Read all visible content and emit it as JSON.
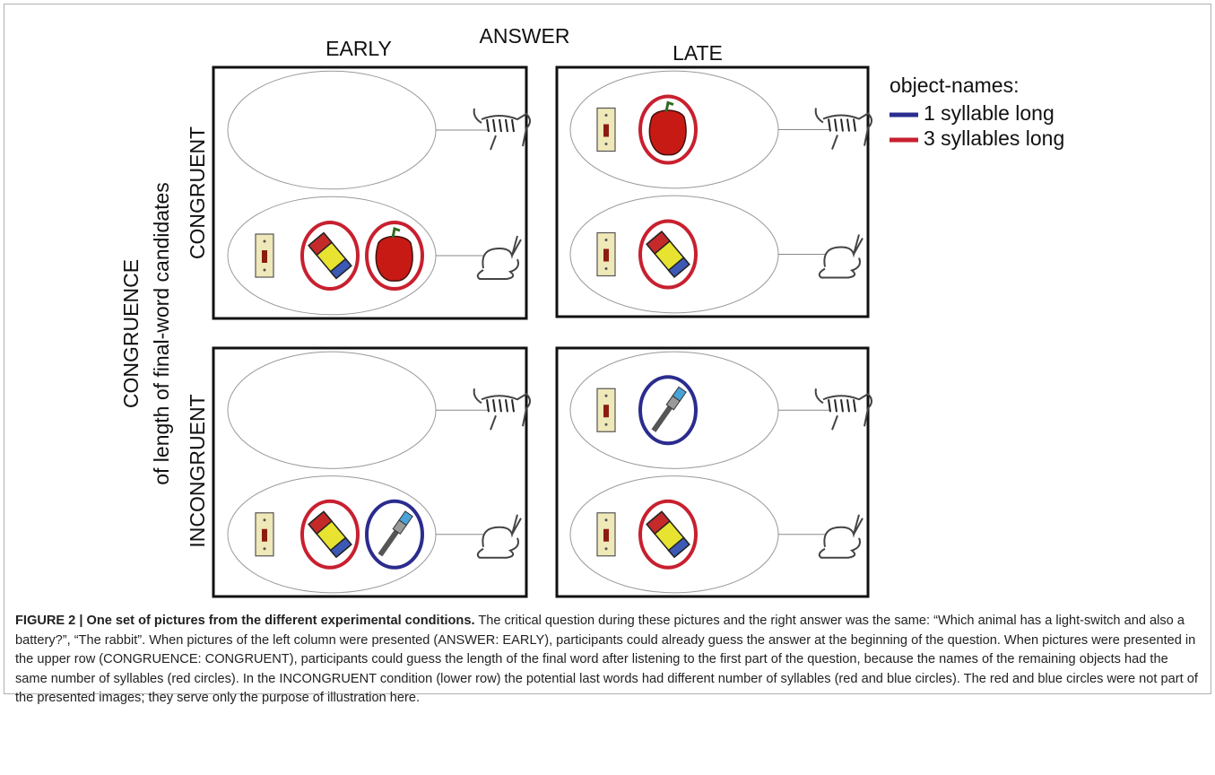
{
  "figure": {
    "column_header": "ANSWER",
    "columns": [
      "EARLY",
      "LATE"
    ],
    "row_header": "CONGRUENCE",
    "row_subheader": "of length of final-word candidates",
    "rows": [
      "CONGRUENT",
      "INCONGRUENT"
    ],
    "legend": {
      "title": "object-names:",
      "items": [
        {
          "label": "1 syllable long",
          "color": "#2b2c8e"
        },
        {
          "label": "3 syllables long",
          "color": "#c8202f"
        }
      ]
    }
  },
  "caption": {
    "label": "FIGURE 2 | One set of pictures from the different experimental conditions.",
    "text": "The critical question during these pictures and the right answer was the same: “Which animal has a light-switch and also a battery?”, “The rabbit”. When pictures of the left column were presented (ANSWER: EARLY), participants could already guess the answer at the beginning of the question. When pictures were presented in the upper row (CONGRUENCE: CONGRUENT), participants could guess the length of the final word after listening to the first part of the question, because the names of the remaining objects had the same number of syllables (red circles). In the INCONGRUENT condition (lower row) the potential last words had different number of syllables (red and blue circles). The red and blue circles were not part of the presented images; they serve only the purpose of illustration here."
  }
}
